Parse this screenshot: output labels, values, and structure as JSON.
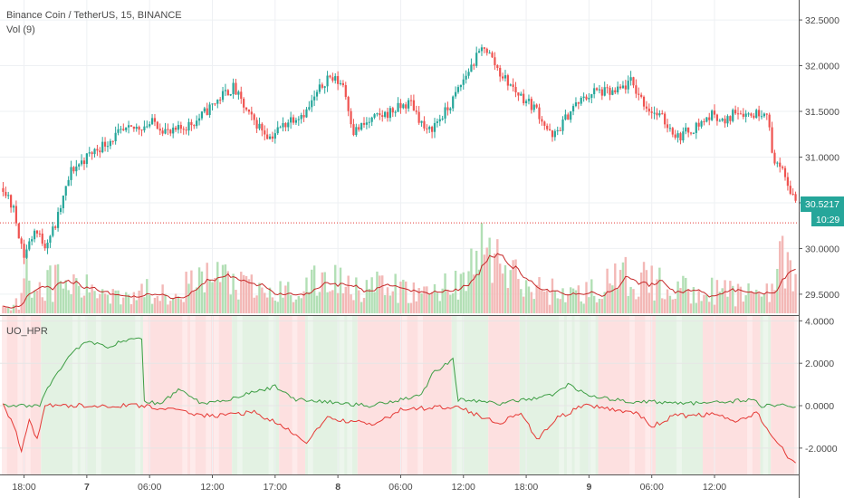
{
  "legend": {
    "symbol_line": "Binance Coin / TetherUS, 15, BINANCE",
    "volume_label": "Vol (9)",
    "indicator_label": "UO_HPR"
  },
  "price_tag": {
    "value": "30.5217",
    "countdown": "10:29"
  },
  "colors": {
    "up": "#26a69a",
    "down": "#ef5350",
    "vol_up": "#b2dfb5",
    "vol_down": "#f3b8b6",
    "vol_ma": "#c62828",
    "osc_green": "#3e9e45",
    "osc_red": "#e53935",
    "bg_green": "#e3f2e3",
    "bg_red": "#fde0e0",
    "grid": "#eef0f3",
    "axis_line": "#555555",
    "tag_bg": "#26a69a",
    "ref_line": "#e53935"
  },
  "chart_data": [
    {
      "type": "candlestick",
      "title": "Binance Coin / TetherUS, 15, BINANCE",
      "y_ticks": [
        "32.5000",
        "32.0000",
        "31.5000",
        "31.0000",
        "30.5000",
        "30.0000",
        "29.5000"
      ],
      "ylim": [
        29.4,
        32.58
      ],
      "x_ticks": [
        "18:00",
        "7",
        "06:00",
        "12:00",
        "17:00",
        "8",
        "06:00",
        "12:00",
        "18:00",
        "9",
        "06:00",
        "12:00"
      ],
      "x_ticks_bold": [
        false,
        true,
        false,
        false,
        false,
        true,
        false,
        false,
        false,
        true,
        false,
        false
      ],
      "last_price": 30.5217,
      "reference_level": 30.28,
      "keyframes": [
        [
          30.66,
          0
        ],
        [
          30.42,
          4
        ],
        [
          29.92,
          8
        ],
        [
          30.2,
          12
        ],
        [
          30.05,
          16
        ],
        [
          30.25,
          20
        ],
        [
          30.85,
          26
        ],
        [
          31.05,
          34
        ],
        [
          31.25,
          44
        ],
        [
          31.33,
          52
        ],
        [
          31.38,
          58
        ],
        [
          31.25,
          64
        ],
        [
          31.4,
          74
        ],
        [
          31.68,
          84
        ],
        [
          31.76,
          88
        ],
        [
          31.45,
          94
        ],
        [
          31.22,
          102
        ],
        [
          31.42,
          110
        ],
        [
          31.5,
          116
        ],
        [
          31.88,
          124
        ],
        [
          31.8,
          130
        ],
        [
          31.28,
          134
        ],
        [
          31.42,
          142
        ],
        [
          31.52,
          150
        ],
        [
          31.6,
          156
        ],
        [
          31.26,
          162
        ],
        [
          31.52,
          170
        ],
        [
          31.95,
          178
        ],
        [
          32.22,
          184
        ],
        [
          31.92,
          190
        ],
        [
          31.72,
          196
        ],
        [
          31.52,
          204
        ],
        [
          31.2,
          210
        ],
        [
          31.55,
          218
        ],
        [
          31.72,
          226
        ],
        [
          31.7,
          234
        ],
        [
          31.82,
          240
        ],
        [
          31.55,
          246
        ],
        [
          31.42,
          252
        ],
        [
          31.22,
          258
        ],
        [
          31.32,
          264
        ],
        [
          31.48,
          272
        ],
        [
          31.36,
          276
        ],
        [
          31.52,
          280
        ],
        [
          31.46,
          286
        ],
        [
          31.52,
          292
        ],
        [
          31.04,
          294
        ],
        [
          30.82,
          298
        ],
        [
          30.52,
          303
        ]
      ]
    },
    {
      "type": "bar",
      "name": "Vol (9)",
      "description_only": false,
      "ylim": [
        0,
        1
      ],
      "keyframes": [
        [
          0.08,
          0
        ],
        [
          0.12,
          6
        ],
        [
          0.5,
          8
        ],
        [
          0.3,
          14
        ],
        [
          0.38,
          20
        ],
        [
          0.28,
          30
        ],
        [
          0.25,
          40
        ],
        [
          0.24,
          50
        ],
        [
          0.3,
          70
        ],
        [
          0.45,
          82
        ],
        [
          0.3,
          92
        ],
        [
          0.22,
          102
        ],
        [
          0.28,
          114
        ],
        [
          0.4,
          124
        ],
        [
          0.36,
          134
        ],
        [
          0.3,
          142
        ],
        [
          0.28,
          150
        ],
        [
          0.22,
          160
        ],
        [
          0.34,
          172
        ],
        [
          0.52,
          180
        ],
        [
          0.8,
          184
        ],
        [
          0.5,
          192
        ],
        [
          0.3,
          200
        ],
        [
          0.26,
          210
        ],
        [
          0.22,
          220
        ],
        [
          0.34,
          232
        ],
        [
          0.42,
          240
        ],
        [
          0.32,
          252
        ],
        [
          0.28,
          262
        ],
        [
          0.26,
          272
        ],
        [
          0.22,
          282
        ],
        [
          0.3,
          292
        ],
        [
          0.55,
          298
        ],
        [
          0.4,
          303
        ]
      ]
    },
    {
      "type": "line",
      "name": "UO_HPR",
      "y_ticks": [
        "4.0000",
        "2.0000",
        "0.0000",
        "-2.0000"
      ],
      "ylim": [
        -3.2,
        4.1
      ],
      "green_keyframes": [
        [
          0.0,
          0
        ],
        [
          0.0,
          14
        ],
        [
          0.6,
          16
        ],
        [
          1.4,
          20
        ],
        [
          2.5,
          26
        ],
        [
          3.0,
          32
        ],
        [
          2.8,
          40
        ],
        [
          3.2,
          50
        ],
        [
          3.1,
          53
        ],
        [
          0.2,
          54
        ],
        [
          0.1,
          60
        ],
        [
          0.8,
          68
        ],
        [
          0.1,
          76
        ],
        [
          0.3,
          86
        ],
        [
          0.9,
          104
        ],
        [
          0.3,
          112
        ],
        [
          0.0,
          140
        ],
        [
          0.5,
          160
        ],
        [
          1.5,
          164
        ],
        [
          2.2,
          172
        ],
        [
          0.3,
          174
        ],
        [
          0.1,
          190
        ],
        [
          0.5,
          210
        ],
        [
          1.0,
          216
        ],
        [
          0.4,
          226
        ],
        [
          0.2,
          240
        ],
        [
          0.1,
          270
        ],
        [
          0.3,
          286
        ],
        [
          0.0,
          290
        ],
        [
          0.0,
          303
        ]
      ],
      "red_keyframes": [
        [
          0.0,
          0
        ],
        [
          -0.9,
          4
        ],
        [
          -2.2,
          7
        ],
        [
          -0.6,
          10
        ],
        [
          -1.6,
          13
        ],
        [
          0.0,
          16
        ],
        [
          0.0,
          54
        ],
        [
          -0.2,
          64
        ],
        [
          -0.5,
          80
        ],
        [
          -0.3,
          96
        ],
        [
          -0.8,
          104
        ],
        [
          -1.7,
          116
        ],
        [
          -0.6,
          124
        ],
        [
          -0.9,
          142
        ],
        [
          -0.2,
          152
        ],
        [
          0.0,
          174
        ],
        [
          -0.5,
          182
        ],
        [
          -0.8,
          190
        ],
        [
          -0.3,
          198
        ],
        [
          -1.6,
          204
        ],
        [
          -0.6,
          212
        ],
        [
          0.0,
          222
        ],
        [
          -0.3,
          242
        ],
        [
          -1.0,
          248
        ],
        [
          -0.5,
          256
        ],
        [
          -0.4,
          272
        ],
        [
          -0.8,
          280
        ],
        [
          -0.3,
          288
        ],
        [
          -1.4,
          294
        ],
        [
          -2.4,
          300
        ],
        [
          -2.8,
          303
        ]
      ],
      "background_regions": [
        [
          "red",
          0,
          15
        ],
        [
          "green",
          15,
          54
        ],
        [
          "red",
          54,
          88
        ],
        [
          "green",
          88,
          106
        ],
        [
          "red",
          106,
          116
        ],
        [
          "green",
          116,
          136
        ],
        [
          "red",
          136,
          172
        ],
        [
          "green",
          172,
          186
        ],
        [
          "red",
          186,
          198
        ],
        [
          "green",
          198,
          228
        ],
        [
          "red",
          228,
          250
        ],
        [
          "green",
          250,
          268
        ],
        [
          "red",
          268,
          290
        ],
        [
          "green",
          290,
          294
        ],
        [
          "red",
          294,
          304
        ]
      ]
    }
  ]
}
